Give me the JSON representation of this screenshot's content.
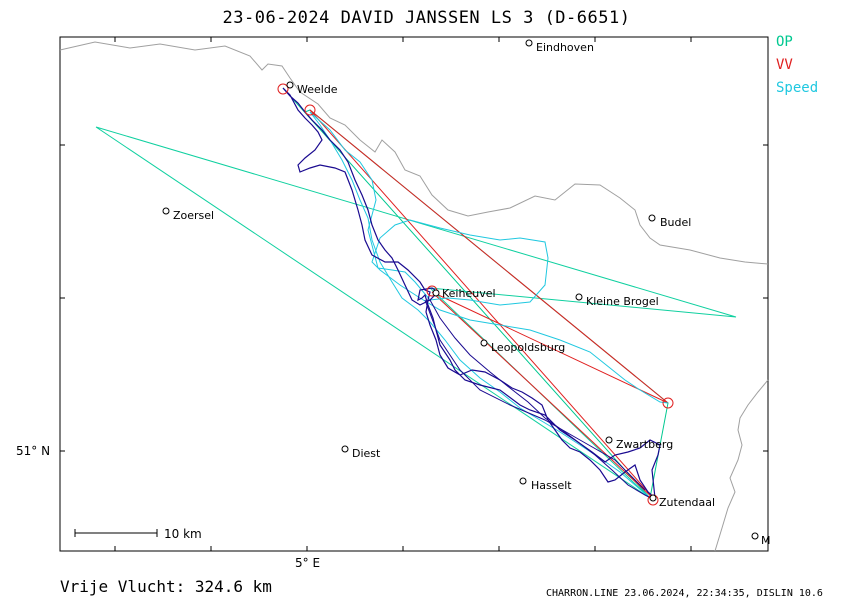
{
  "title": "23-06-2024   DAVID JANSSEN   LS 3 (D-6651)",
  "legend": {
    "op": {
      "label": "OP",
      "color": "#00c890"
    },
    "vv": {
      "label": "VV",
      "color": "#e02020"
    },
    "speed": {
      "label": "Speed",
      "color": "#20c8e0"
    }
  },
  "places": {
    "eindhoven": "Eindhoven",
    "weelde": "Weelde",
    "zoersel": "Zoersel",
    "budel": "Budel",
    "keiheuvel": "Keiheuvel",
    "kleine_brogel": "Kleine Brogel",
    "leopoldsburg": "Leopoldsburg",
    "zwartberg": "Zwartberg",
    "diest": "Diest",
    "hasselt": "Hasselt",
    "zutendaal": "Zutendaal",
    "edge_m": "M"
  },
  "axes": {
    "lat_label": "51° N",
    "lon_label": "5° E"
  },
  "scale_bar": "10  km",
  "footer": {
    "distance": "Vrije Vlucht:  324.6 km",
    "credit": "CHARRON.LINE 23.06.2024, 22:34:35, DISLIN 10.6"
  }
}
